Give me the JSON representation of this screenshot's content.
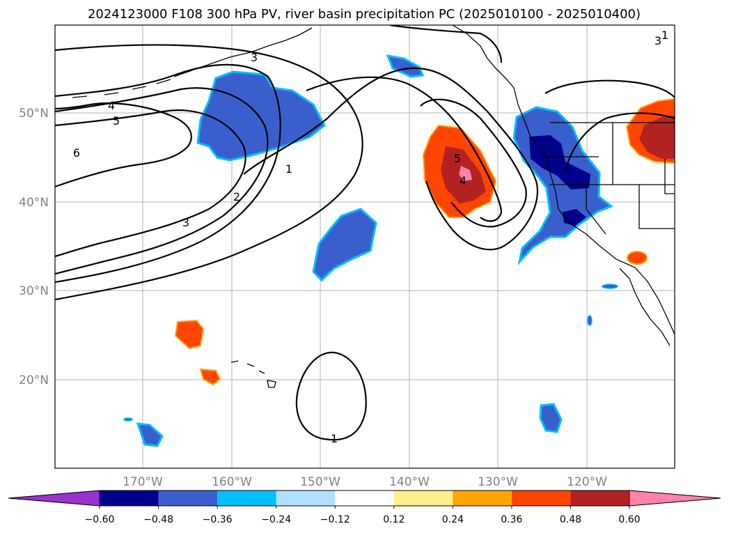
{
  "title": "2024123000 F108 300 hPa PV, river basin precipitation PC (2025010100 - 2025010400)",
  "map": {
    "lat_labels": [
      "50°N",
      "40°N",
      "30°N",
      "20°N"
    ],
    "lon_labels": [
      "170°W",
      "160°W",
      "150°W",
      "140°W",
      "130°W",
      "120°W"
    ]
  },
  "contour_labels": [
    "1",
    "2",
    "3",
    "4",
    "5",
    "6",
    "3",
    "5",
    "4",
    "1",
    "1",
    "3"
  ],
  "colorbar": {
    "colors": [
      "#9a32cd",
      "#00008b",
      "#3a5fcd",
      "#00bfff",
      "#b0e2ff",
      "#ffffff",
      "#fff08c",
      "#ffa500",
      "#ff4500",
      "#b22222",
      "#ff82ab"
    ],
    "tick_labels": [
      "−0.60",
      "−0.48",
      "−0.36",
      "−0.24",
      "−0.12",
      "0.12",
      "0.24",
      "0.36",
      "0.48",
      "0.60"
    ]
  }
}
